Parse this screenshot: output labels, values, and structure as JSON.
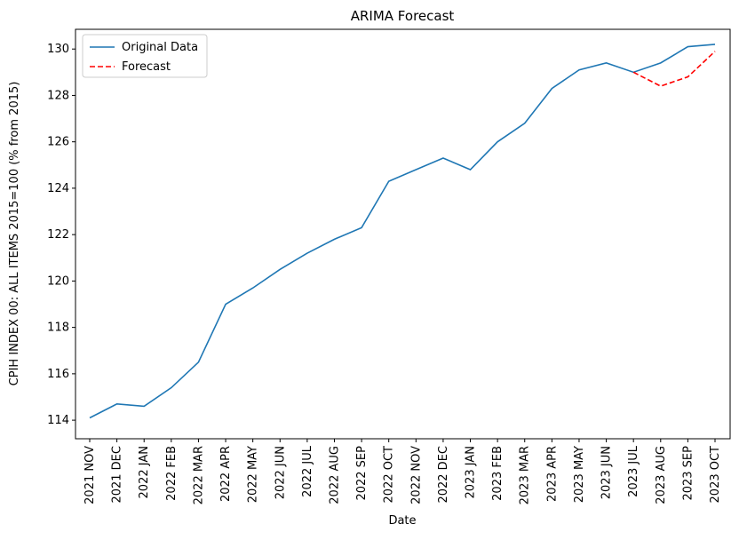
{
  "chart_data": {
    "type": "line",
    "title": "ARIMA Forecast",
    "x_label": "Date",
    "y_label": "CPIH INDEX 00: ALL ITEMS 2015=100 (% from 2015)",
    "categories": [
      "2021 NOV",
      "2021 DEC",
      "2022 JAN",
      "2022 FEB",
      "2022 MAR",
      "2022 APR",
      "2022 MAY",
      "2022 JUN",
      "2022 JUL",
      "2022 AUG",
      "2022 SEP",
      "2022 OCT",
      "2022 NOV",
      "2022 DEC",
      "2023 JAN",
      "2023 FEB",
      "2023 MAR",
      "2023 APR",
      "2023 MAY",
      "2023 JUN",
      "2023 JUL",
      "2023 AUG",
      "2023 SEP",
      "2023 OCT"
    ],
    "series": [
      {
        "name": "Original Data",
        "color": "#1f77b4",
        "dashed": false,
        "values": [
          114.1,
          114.7,
          114.6,
          115.4,
          116.5,
          119.0,
          119.7,
          120.5,
          121.2,
          121.8,
          122.3,
          124.3,
          124.8,
          125.3,
          124.8,
          126.0,
          126.8,
          128.3,
          129.1,
          129.4,
          129.0,
          129.4,
          130.1,
          130.2
        ]
      },
      {
        "name": "Forecast",
        "color": "#ff0000",
        "dashed": true,
        "values": [
          null,
          null,
          null,
          null,
          null,
          null,
          null,
          null,
          null,
          null,
          null,
          null,
          null,
          null,
          null,
          null,
          null,
          null,
          null,
          null,
          129.0,
          128.4,
          128.8,
          129.9
        ]
      }
    ],
    "ylim": [
      113.2,
      130.85
    ],
    "yticks": [
      114,
      116,
      118,
      120,
      122,
      124,
      126,
      128,
      130
    ],
    "grid": false,
    "legend": "upper left"
  }
}
